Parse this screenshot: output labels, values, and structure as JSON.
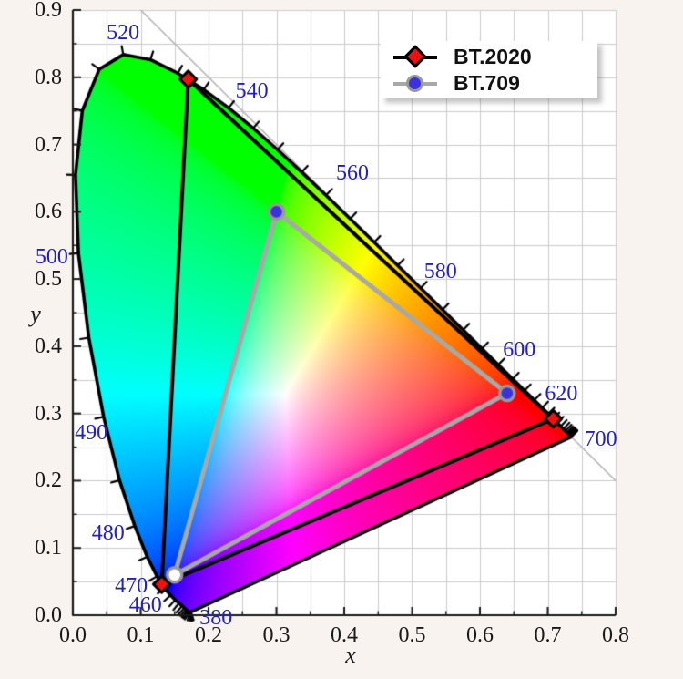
{
  "colors": {
    "background": "#f8f3ee",
    "plot_background": "#ffffff",
    "grid": "#cccccc",
    "spine": "#1a1a1a",
    "diagonal_line": "#b4b4b4",
    "locus_stroke": "#000000",
    "wavelength_label_color": "#2222bb",
    "tick_label_color": "#1a1a1a"
  },
  "legend": {
    "items": [
      {
        "label": "BT.2020",
        "marker": "diamond",
        "marker_fill": "#ee1111",
        "marker_edge": "#000000",
        "line_color": "#000000"
      },
      {
        "label": "BT.709",
        "marker": "circle",
        "marker_fill": "#3a33dd",
        "marker_edge": "#999999",
        "line_color": "#a8a8a8"
      }
    ]
  },
  "axes": {
    "x_ticks": [
      {
        "v": 0.0,
        "label": "0.0"
      },
      {
        "v": 0.1,
        "label": "0.1"
      },
      {
        "v": 0.2,
        "label": "0.2"
      },
      {
        "v": 0.3,
        "label": "0.3"
      },
      {
        "v": 0.4,
        "label": "0.4"
      },
      {
        "v": 0.5,
        "label": "0.5"
      },
      {
        "v": 0.6,
        "label": "0.6"
      },
      {
        "v": 0.7,
        "label": "0.7"
      },
      {
        "v": 0.8,
        "label": "0.8"
      }
    ],
    "y_ticks": [
      {
        "v": 0.0,
        "label": "0.0"
      },
      {
        "v": 0.1,
        "label": "0.1"
      },
      {
        "v": 0.2,
        "label": "0.2"
      },
      {
        "v": 0.3,
        "label": "0.3"
      },
      {
        "v": 0.4,
        "label": "0.4"
      },
      {
        "v": 0.5,
        "label": "0.5"
      },
      {
        "v": 0.6,
        "label": "0.6"
      },
      {
        "v": 0.7,
        "label": "0.7"
      },
      {
        "v": 0.8,
        "label": "0.8"
      },
      {
        "v": 0.9,
        "label": "0.9"
      }
    ]
  },
  "chart_data": {
    "type": "scatter",
    "title": "",
    "xlabel": "x",
    "ylabel": "y",
    "xlim": [
      0.0,
      0.8
    ],
    "ylim": [
      0.0,
      0.9
    ],
    "grid": true,
    "grid_step": 0.05,
    "legend_position": "upper right",
    "diagonal_line": {
      "from": [
        0.1,
        0.9
      ],
      "to": [
        0.8,
        0.2
      ]
    },
    "series": [
      {
        "name": "BT.2020",
        "shape": "triangle",
        "line_color": "#000000",
        "line_width": 4,
        "marker": "diamond",
        "marker_fill": "#ee1111",
        "marker_edge": "#000000",
        "points": {
          "red": [
            0.708,
            0.292
          ],
          "green": [
            0.17,
            0.797
          ],
          "blue": [
            0.131,
            0.046
          ]
        },
        "point_faces": {
          "red": "#ee1111",
          "green": "#ee1111",
          "blue": "#ee1111"
        }
      },
      {
        "name": "BT.709",
        "shape": "triangle",
        "line_color": "#a8a8a8",
        "line_width": 5,
        "marker": "circle",
        "marker_fill": "#3a33dd",
        "marker_edge": "#999999",
        "points": {
          "red": [
            0.64,
            0.33
          ],
          "green": [
            0.3,
            0.6
          ],
          "blue": [
            0.15,
            0.06
          ]
        },
        "point_faces": {
          "red": "#3a33dd",
          "green": "#3a33dd",
          "blue": "#ffffff"
        }
      }
    ],
    "spectral_locus": {
      "wavelengths": [
        380,
        385,
        390,
        395,
        400,
        405,
        410,
        415,
        420,
        425,
        430,
        435,
        440,
        445,
        450,
        455,
        460,
        465,
        470,
        475,
        480,
        485,
        490,
        495,
        500,
        505,
        510,
        515,
        520,
        525,
        530,
        535,
        540,
        545,
        550,
        555,
        560,
        565,
        570,
        575,
        580,
        585,
        590,
        595,
        600,
        605,
        610,
        615,
        620,
        625,
        630,
        635,
        640,
        645,
        650,
        655,
        660,
        665,
        670,
        675,
        680,
        685,
        690,
        695,
        700
      ],
      "x": [
        0.1741,
        0.174,
        0.1738,
        0.1736,
        0.1733,
        0.173,
        0.1726,
        0.1721,
        0.1714,
        0.1703,
        0.1689,
        0.1669,
        0.1644,
        0.1611,
        0.1566,
        0.151,
        0.144,
        0.1355,
        0.1241,
        0.1096,
        0.0913,
        0.0687,
        0.0454,
        0.0235,
        0.0082,
        0.0039,
        0.0139,
        0.0389,
        0.0743,
        0.1142,
        0.1547,
        0.1929,
        0.2296,
        0.2658,
        0.3016,
        0.3373,
        0.3731,
        0.4087,
        0.4441,
        0.4788,
        0.5125,
        0.5448,
        0.5752,
        0.6029,
        0.627,
        0.6482,
        0.6658,
        0.6801,
        0.6915,
        0.7006,
        0.7079,
        0.714,
        0.719,
        0.723,
        0.726,
        0.7283,
        0.73,
        0.7311,
        0.732,
        0.7327,
        0.7334,
        0.734,
        0.7344,
        0.7346,
        0.7347
      ],
      "y": [
        0.005,
        0.005,
        0.0049,
        0.0049,
        0.0048,
        0.0048,
        0.0048,
        0.0048,
        0.0051,
        0.0058,
        0.0069,
        0.0086,
        0.0109,
        0.0138,
        0.0177,
        0.0227,
        0.0297,
        0.0399,
        0.0578,
        0.0868,
        0.1327,
        0.2007,
        0.295,
        0.4127,
        0.5384,
        0.6548,
        0.7502,
        0.812,
        0.8338,
        0.8262,
        0.8059,
        0.7816,
        0.7543,
        0.7243,
        0.6923,
        0.6589,
        0.6245,
        0.5896,
        0.5547,
        0.5202,
        0.4866,
        0.4544,
        0.4242,
        0.3965,
        0.3725,
        0.3514,
        0.334,
        0.3197,
        0.3083,
        0.2993,
        0.292,
        0.2859,
        0.2809,
        0.277,
        0.274,
        0.2717,
        0.27,
        0.2689,
        0.268,
        0.2673,
        0.2666,
        0.266,
        0.2656,
        0.2654,
        0.2653
      ]
    },
    "wavelength_labels": [
      {
        "nm": "380",
        "x": 0.211,
        "y": -0.004
      },
      {
        "nm": "460",
        "x": 0.107,
        "y": 0.015
      },
      {
        "nm": "470",
        "x": 0.086,
        "y": 0.043
      },
      {
        "nm": "480",
        "x": 0.052,
        "y": 0.122
      },
      {
        "nm": "490",
        "x": 0.027,
        "y": 0.271
      },
      {
        "nm": "500",
        "x": -0.031,
        "y": 0.533
      },
      {
        "nm": "520",
        "x": 0.074,
        "y": 0.866
      },
      {
        "nm": "540",
        "x": 0.264,
        "y": 0.779
      },
      {
        "nm": "560",
        "x": 0.412,
        "y": 0.657
      },
      {
        "nm": "580",
        "x": 0.542,
        "y": 0.511
      },
      {
        "nm": "600",
        "x": 0.658,
        "y": 0.394
      },
      {
        "nm": "620",
        "x": 0.72,
        "y": 0.329
      },
      {
        "nm": "700",
        "x": 0.778,
        "y": 0.262
      }
    ]
  }
}
